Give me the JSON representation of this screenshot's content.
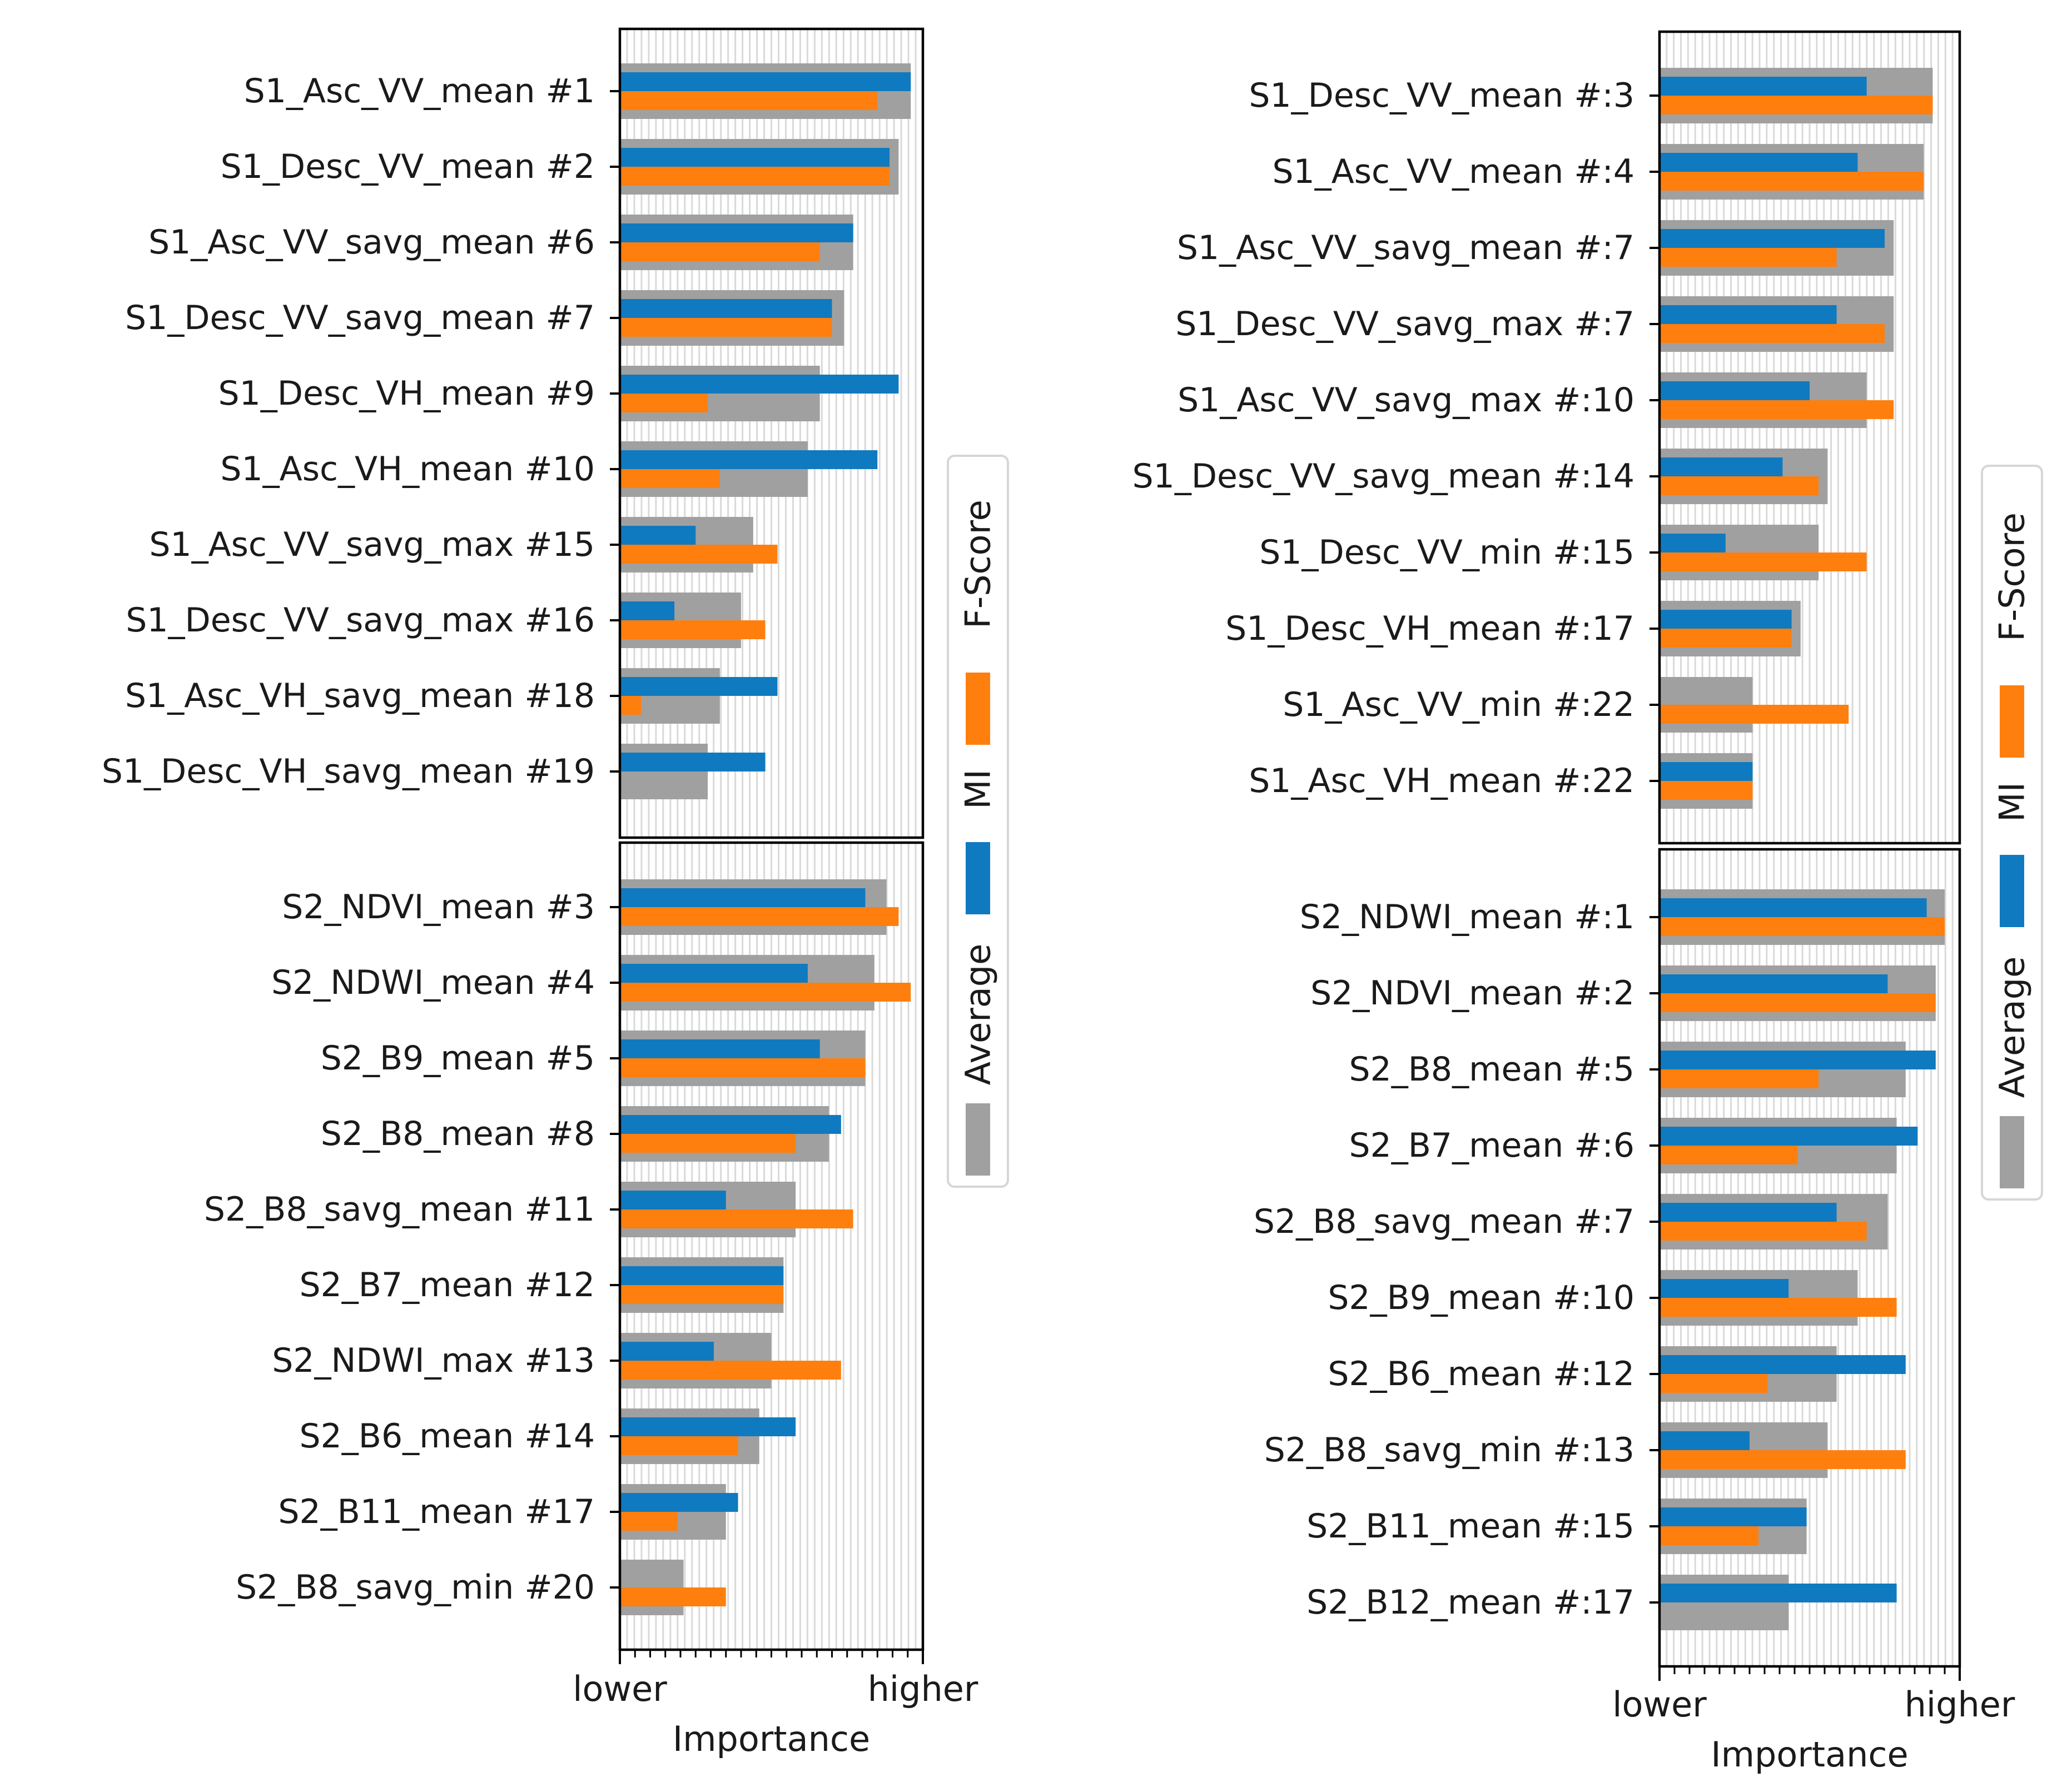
{
  "chart_data": [
    {
      "type": "bar",
      "orientation": "horizontal",
      "xlabel": "Importance",
      "xticks": [
        "lower",
        "higher"
      ],
      "xlim": [
        0,
        1
      ],
      "legend": {
        "placement": "right",
        "orientation": "vertical-text",
        "entries": [
          {
            "label": "Average",
            "color": "#a0a0a0"
          },
          {
            "label": "MI",
            "color": "#0f7abf"
          },
          {
            "label": "F-Score",
            "color": "#ff7f0e"
          }
        ]
      },
      "grid": true,
      "panels": [
        {
          "categories": [
            "S1_Asc_VV_mean  #1",
            "S1_Desc_VV_mean  #2",
            "S1_Asc_VV_savg_mean  #6",
            "S1_Desc_VV_savg_mean  #7",
            "S1_Desc_VH_mean  #9",
            "S1_Asc_VH_mean  #10",
            "S1_Asc_VV_savg_max  #15",
            "S1_Desc_VV_savg_max  #16",
            "S1_Asc_VH_savg_mean  #18",
            "S1_Desc_VH_savg_mean  #19"
          ],
          "series": [
            {
              "name": "Average",
              "values": [
                0.96,
                0.92,
                0.77,
                0.74,
                0.66,
                0.62,
                0.44,
                0.4,
                0.33,
                0.29
              ]
            },
            {
              "name": "MI",
              "values": [
                0.96,
                0.89,
                0.77,
                0.7,
                0.92,
                0.85,
                0.25,
                0.18,
                0.52,
                0.48
              ]
            },
            {
              "name": "F-Score",
              "values": [
                0.85,
                0.89,
                0.66,
                0.7,
                0.29,
                0.33,
                0.52,
                0.48,
                0.07,
                0.0
              ]
            }
          ]
        },
        {
          "categories": [
            "S2_NDVI_mean  #3",
            "S2_NDWI_mean  #4",
            "S2_B9_mean  #5",
            "S2_B8_mean  #8",
            "S2_B8_savg_mean  #11",
            "S2_B7_mean  #12",
            "S2_NDWI_max  #13",
            "S2_B6_mean  #14",
            "S2_B11_mean  #17",
            "S2_B8_savg_min  #20"
          ],
          "series": [
            {
              "name": "Average",
              "values": [
                0.88,
                0.84,
                0.81,
                0.69,
                0.58,
                0.54,
                0.5,
                0.46,
                0.35,
                0.21
              ]
            },
            {
              "name": "MI",
              "values": [
                0.81,
                0.62,
                0.66,
                0.73,
                0.35,
                0.54,
                0.31,
                0.58,
                0.39,
                0.0
              ]
            },
            {
              "name": "F-Score",
              "values": [
                0.92,
                0.96,
                0.81,
                0.58,
                0.77,
                0.54,
                0.73,
                0.39,
                0.19,
                0.35
              ]
            }
          ]
        }
      ]
    },
    {
      "type": "bar",
      "orientation": "horizontal",
      "xlabel": "Importance",
      "xticks": [
        "lower",
        "higher"
      ],
      "xlim": [
        0,
        1
      ],
      "legend": {
        "placement": "right",
        "orientation": "vertical-text",
        "entries": [
          {
            "label": "Average",
            "color": "#a0a0a0"
          },
          {
            "label": "MI",
            "color": "#0f7abf"
          },
          {
            "label": "F-Score",
            "color": "#ff7f0e"
          }
        ]
      },
      "grid": true,
      "panels": [
        {
          "categories": [
            "S1_Desc_VV_mean  #:3",
            "S1_Asc_VV_mean  #:4",
            "S1_Asc_VV_savg_mean  #:7",
            "S1_Desc_VV_savg_max  #:7",
            "S1_Asc_VV_savg_max  #:10",
            "S1_Desc_VV_savg_mean  #:14",
            "S1_Desc_VV_min  #:15",
            "S1_Desc_VH_mean  #:17",
            "S1_Asc_VV_min  #:22",
            "S1_Asc_VH_mean  #:22"
          ],
          "series": [
            {
              "name": "Average",
              "values": [
                0.91,
                0.88,
                0.78,
                0.78,
                0.69,
                0.56,
                0.53,
                0.47,
                0.31,
                0.31
              ]
            },
            {
              "name": "MI",
              "values": [
                0.69,
                0.66,
                0.75,
                0.59,
                0.5,
                0.41,
                0.22,
                0.44,
                0.0,
                0.31
              ]
            },
            {
              "name": "F-Score",
              "values": [
                0.91,
                0.88,
                0.59,
                0.75,
                0.78,
                0.53,
                0.69,
                0.44,
                0.63,
                0.31
              ]
            }
          ]
        },
        {
          "categories": [
            "S2_NDWI_mean  #:1",
            "S2_NDVI_mean  #:2",
            "S2_B8_mean  #:5",
            "S2_B7_mean  #:6",
            "S2_B8_savg_mean  #:7",
            "S2_B9_mean  #:10",
            "S2_B6_mean  #:12",
            "S2_B8_savg_min  #:13",
            "S2_B11_mean  #:15",
            "S2_B12_mean  #:17"
          ],
          "series": [
            {
              "name": "Average",
              "values": [
                0.95,
                0.92,
                0.82,
                0.79,
                0.76,
                0.66,
                0.59,
                0.56,
                0.49,
                0.43
              ]
            },
            {
              "name": "MI",
              "values": [
                0.89,
                0.76,
                0.92,
                0.86,
                0.59,
                0.43,
                0.82,
                0.3,
                0.49,
                0.79
              ]
            },
            {
              "name": "F-Score",
              "values": [
                0.95,
                0.92,
                0.53,
                0.46,
                0.69,
                0.79,
                0.36,
                0.82,
                0.33,
                0.0
              ]
            }
          ]
        }
      ]
    }
  ]
}
